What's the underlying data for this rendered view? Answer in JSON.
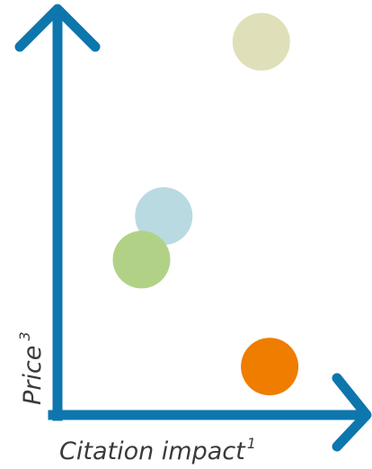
{
  "chart_data": {
    "type": "scatter",
    "xlabel": "Citation impact",
    "xlabel_sup": "1",
    "ylabel": "Price",
    "ylabel_sup": "3",
    "xlim": [
      0,
      100
    ],
    "ylim": [
      0,
      100
    ],
    "grid": false,
    "tick_labels": false,
    "colors": {
      "axis": "#0d76ad"
    },
    "points": [
      {
        "x": 68,
        "y": 94,
        "color": "#dfe0b9"
      },
      {
        "x": 33,
        "y": 50,
        "color": "#b9dae1"
      },
      {
        "x": 25,
        "y": 39,
        "color": "#b1d286"
      },
      {
        "x": 71,
        "y": 12,
        "color": "#ef7d00"
      }
    ]
  }
}
